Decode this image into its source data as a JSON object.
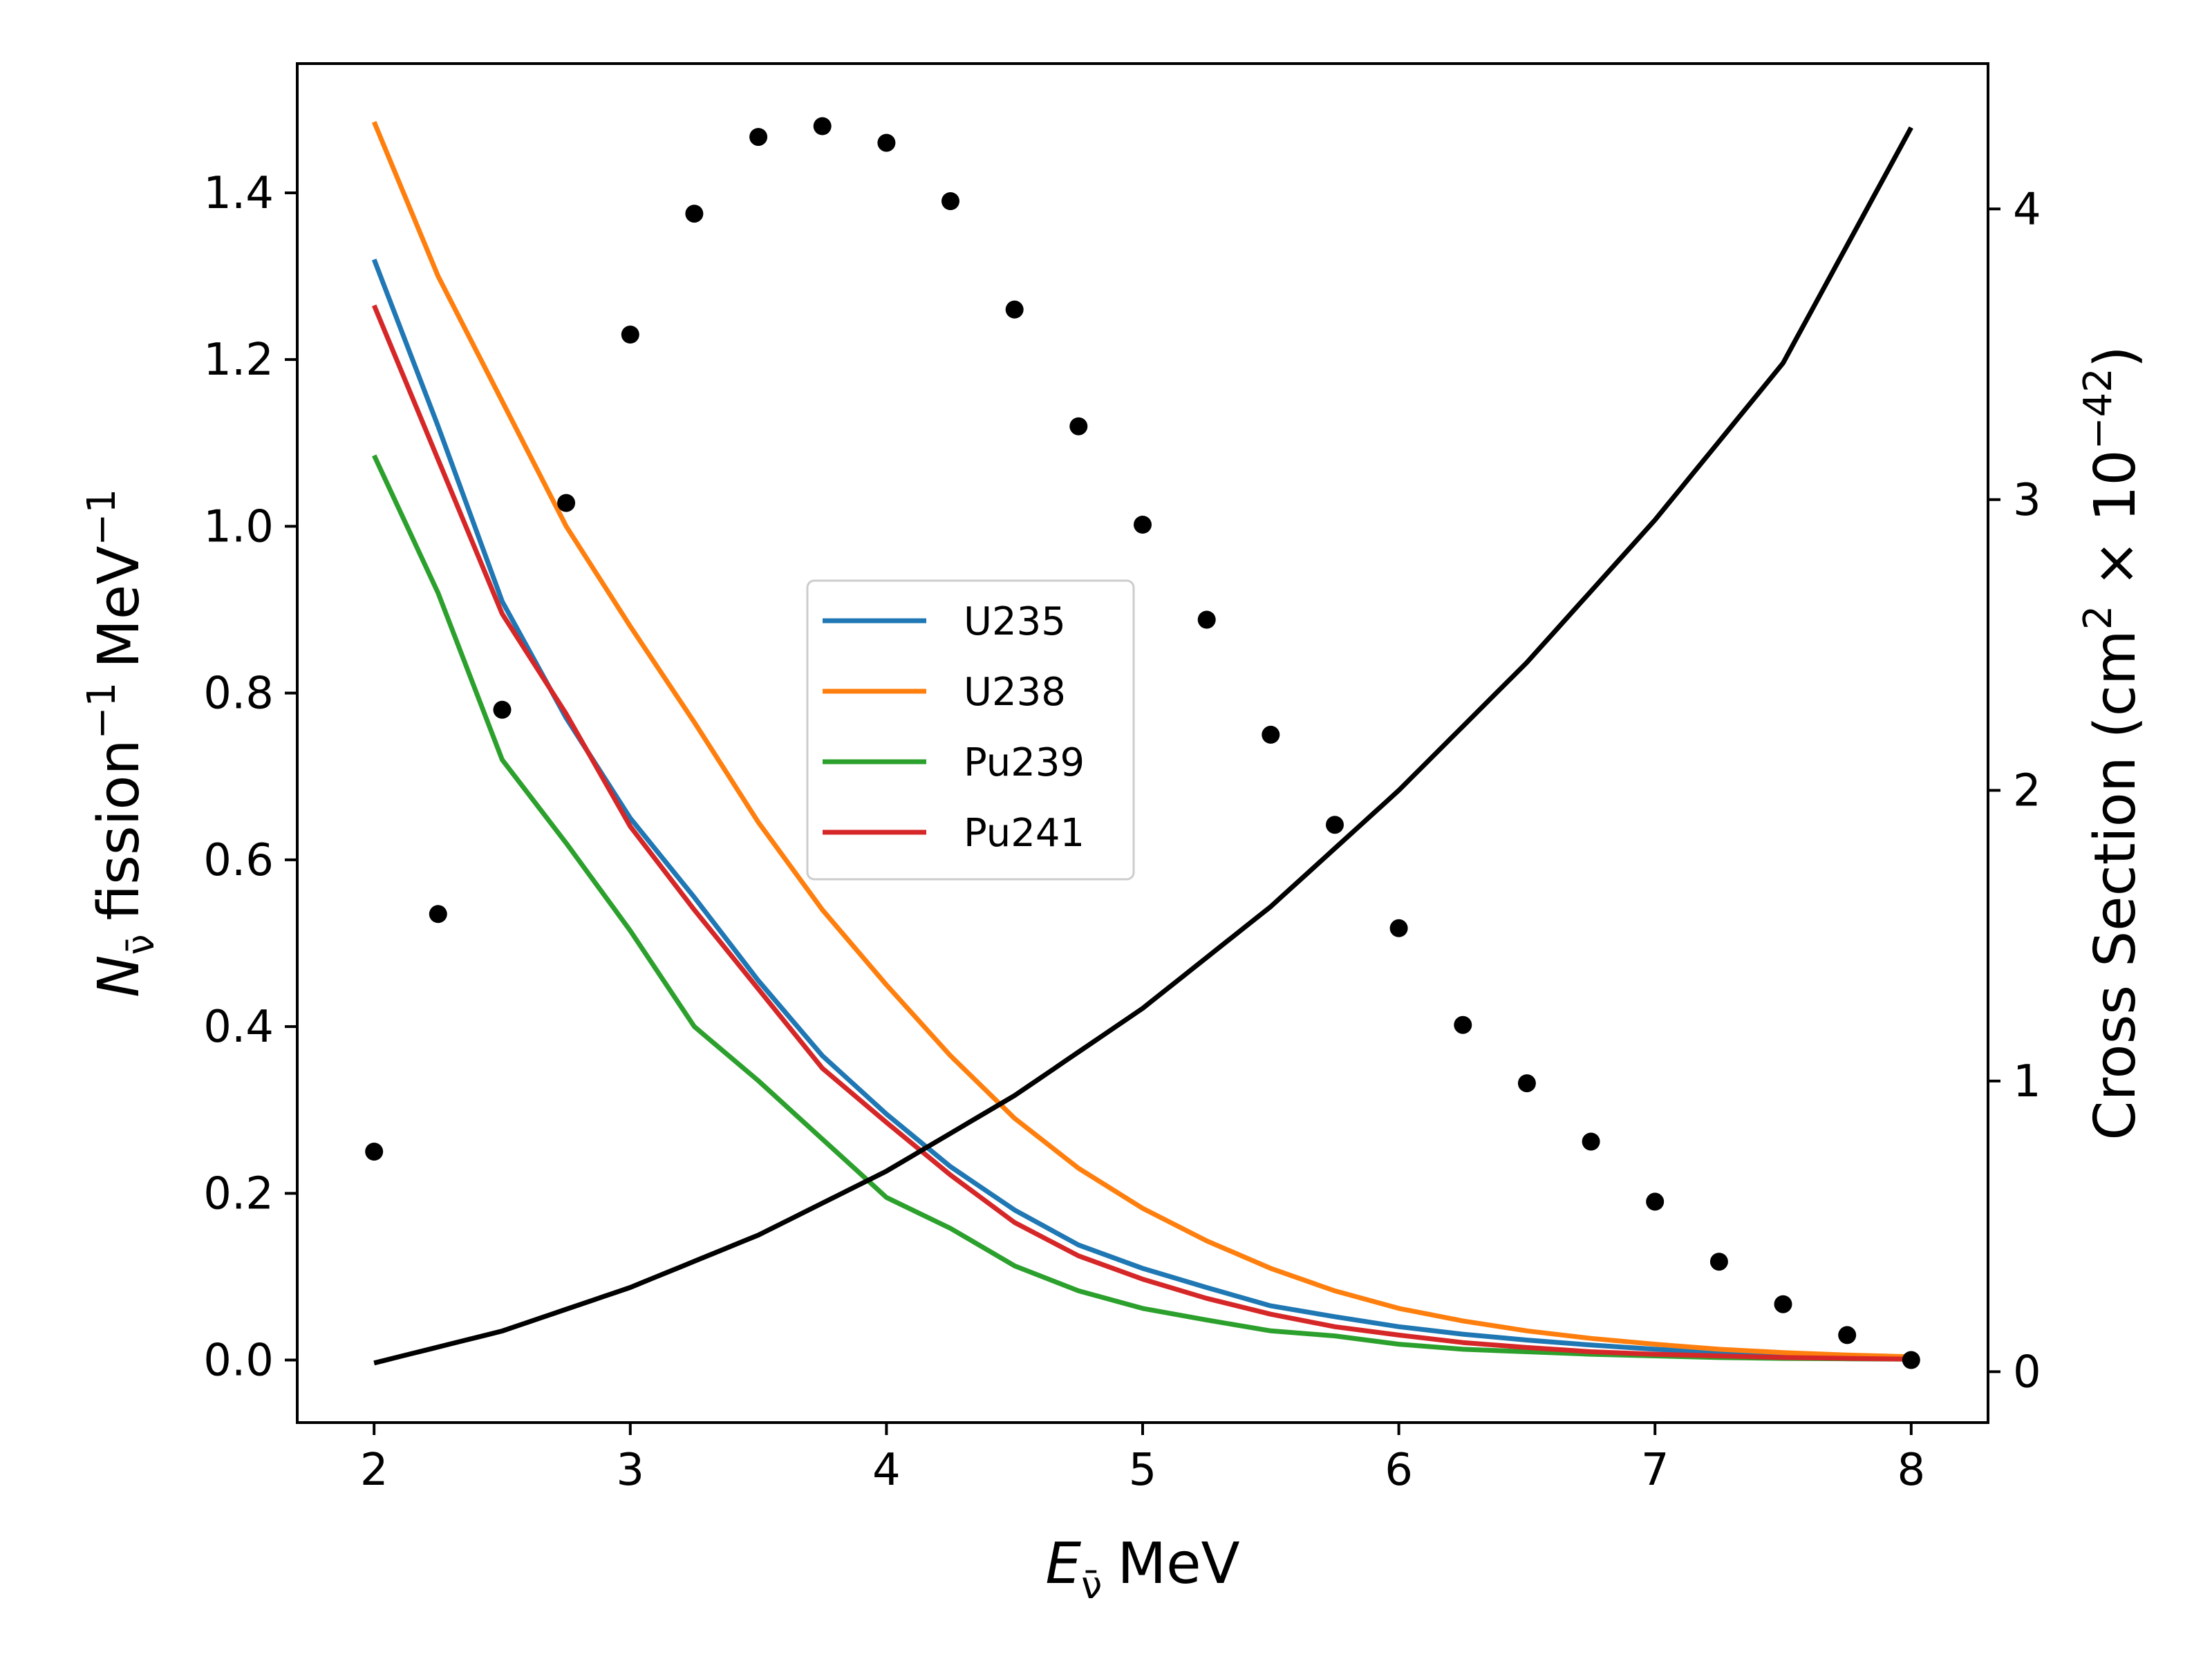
{
  "chart_data": {
    "type": "line",
    "xlabel_symbol": "E",
    "xlabel_sub": "ν̄",
    "xlabel_unit": "MeV",
    "ylabel_left_symbol": "N",
    "ylabel_left_sub": "ν̄",
    "ylabel_left_text1": "fission",
    "ylabel_left_text2": "MeV",
    "ylabel_left_exp": "−1",
    "ylabel_right_text": "Cross Section (cm",
    "ylabel_right_exp1": "2",
    "ylabel_right_mid": " × 10",
    "ylabel_right_exp2": "−42",
    "ylabel_right_close": ")",
    "xlim": [
      1.7,
      8.3
    ],
    "ylim_left": [
      -0.075,
      1.555
    ],
    "ylim_right": [
      -0.175,
      4.5
    ],
    "xticks": [
      "2",
      "3",
      "4",
      "5",
      "6",
      "7",
      "8"
    ],
    "yticks_left": [
      "0.0",
      "0.2",
      "0.4",
      "0.6",
      "0.8",
      "1.0",
      "1.2",
      "1.4"
    ],
    "yticks_right": [
      "0",
      "1",
      "2",
      "3",
      "4"
    ],
    "legend_position": "center",
    "x": [
      2,
      2.25,
      2.5,
      2.75,
      3,
      3.25,
      3.5,
      3.75,
      4,
      4.25,
      4.5,
      4.75,
      5,
      5.25,
      5.5,
      5.75,
      6,
      6.25,
      6.5,
      6.75,
      7,
      7.25,
      7.5,
      7.75,
      8
    ],
    "series": [
      {
        "name": "U235",
        "color": "#1f77b4",
        "axis": "left",
        "values": [
          1.32,
          1.12,
          0.91,
          0.77,
          0.65,
          0.555,
          0.455,
          0.365,
          0.295,
          0.232,
          0.18,
          0.138,
          0.11,
          0.087,
          0.065,
          0.052,
          0.04,
          0.031,
          0.024,
          0.018,
          0.013,
          0.009,
          0.006,
          0.004,
          0.003
        ]
      },
      {
        "name": "U238",
        "color": "#ff7f0e",
        "axis": "left",
        "values": [
          1.485,
          1.3,
          1.15,
          1.0,
          0.88,
          0.765,
          0.645,
          0.54,
          0.45,
          0.365,
          0.29,
          0.23,
          0.182,
          0.143,
          0.11,
          0.083,
          0.062,
          0.047,
          0.035,
          0.026,
          0.019,
          0.013,
          0.009,
          0.006,
          0.004
        ]
      },
      {
        "name": "Pu239",
        "color": "#2ca02c",
        "axis": "left",
        "values": [
          1.085,
          0.92,
          0.72,
          0.62,
          0.515,
          0.4,
          0.335,
          0.265,
          0.195,
          0.158,
          0.113,
          0.083,
          0.062,
          0.048,
          0.035,
          0.029,
          0.019,
          0.013,
          0.01,
          0.007,
          0.005,
          0.003,
          0.002,
          0.0015,
          0.001
        ]
      },
      {
        "name": "Pu241",
        "color": "#d62728",
        "axis": "left",
        "values": [
          1.265,
          1.08,
          0.895,
          0.775,
          0.64,
          0.54,
          0.445,
          0.35,
          0.285,
          0.222,
          0.165,
          0.125,
          0.097,
          0.074,
          0.055,
          0.04,
          0.03,
          0.021,
          0.015,
          0.01,
          0.007,
          0.005,
          0.003,
          0.002,
          0.001
        ]
      }
    ],
    "scatter": {
      "color": "#000000",
      "axis": "left",
      "values": [
        0.25,
        0.535,
        0.78,
        1.028,
        1.23,
        1.375,
        1.467,
        1.48,
        1.46,
        1.39,
        1.26,
        1.12,
        1.002,
        0.888,
        0.75,
        0.642,
        0.518,
        0.402,
        0.332,
        0.262,
        0.19,
        0.118,
        0.067,
        0.03,
        0.0
      ]
    },
    "cross_section": {
      "color": "#000000",
      "axis": "right",
      "x": [
        2,
        2.5,
        3,
        3.5,
        4,
        4.5,
        5,
        5.5,
        6,
        6.5,
        7,
        7.5,
        8
      ],
      "values": [
        0.03,
        0.14,
        0.29,
        0.47,
        0.69,
        0.95,
        1.25,
        1.6,
        2.0,
        2.44,
        2.93,
        3.47,
        4.28
      ]
    }
  }
}
